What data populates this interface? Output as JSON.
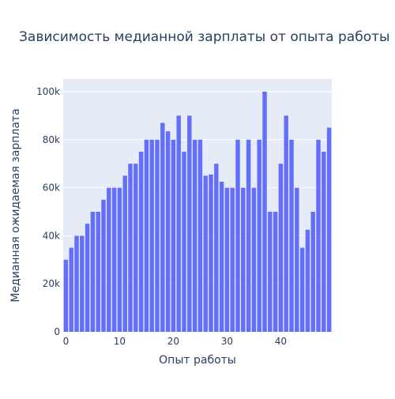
{
  "chart_data": {
    "type": "bar",
    "title": "Зависимость медианной зарплаты от опыта работы",
    "xlabel": "Опыт работы",
    "ylabel": "Медианная ожидаемая зарплата",
    "xlim": [
      -0.5,
      49.5
    ],
    "ylim": [
      0,
      105263
    ],
    "x_ticks": [
      0,
      10,
      20,
      30,
      40
    ],
    "x_tick_labels": [
      "0",
      "10",
      "20",
      "30",
      "40"
    ],
    "y_ticks": [
      0,
      20000,
      40000,
      60000,
      80000,
      100000
    ],
    "y_tick_labels": [
      "0",
      "20k",
      "40k",
      "60k",
      "80k",
      "100k"
    ],
    "grid": true,
    "colors": {
      "bar": "#636efa",
      "plot_bg": "#e5ecf6",
      "grid": "#ffffff",
      "text": "#2a3f5f"
    },
    "x": [
      0,
      1,
      2,
      3,
      4,
      5,
      6,
      7,
      8,
      9,
      10,
      11,
      12,
      13,
      14,
      15,
      16,
      17,
      18,
      19,
      20,
      21,
      22,
      23,
      24,
      25,
      26,
      27,
      28,
      29,
      30,
      31,
      32,
      33,
      34,
      35,
      36,
      37,
      38,
      39,
      40,
      41,
      42,
      43,
      44,
      45,
      46,
      47,
      48,
      49
    ],
    "values": [
      30000,
      35000,
      40000,
      40000,
      45000,
      50000,
      50000,
      55000,
      60000,
      60000,
      60000,
      65000,
      70000,
      70000,
      75000,
      80000,
      80000,
      80000,
      87000,
      83500,
      80000,
      90000,
      75000,
      90000,
      80000,
      80000,
      65000,
      65500,
      70000,
      62500,
      60000,
      60000,
      80000,
      60000,
      80000,
      60000,
      80000,
      100000,
      50000,
      50000,
      70000,
      90000,
      80000,
      60000,
      35000,
      42500,
      50000,
      80000,
      75000,
      85000
    ]
  }
}
